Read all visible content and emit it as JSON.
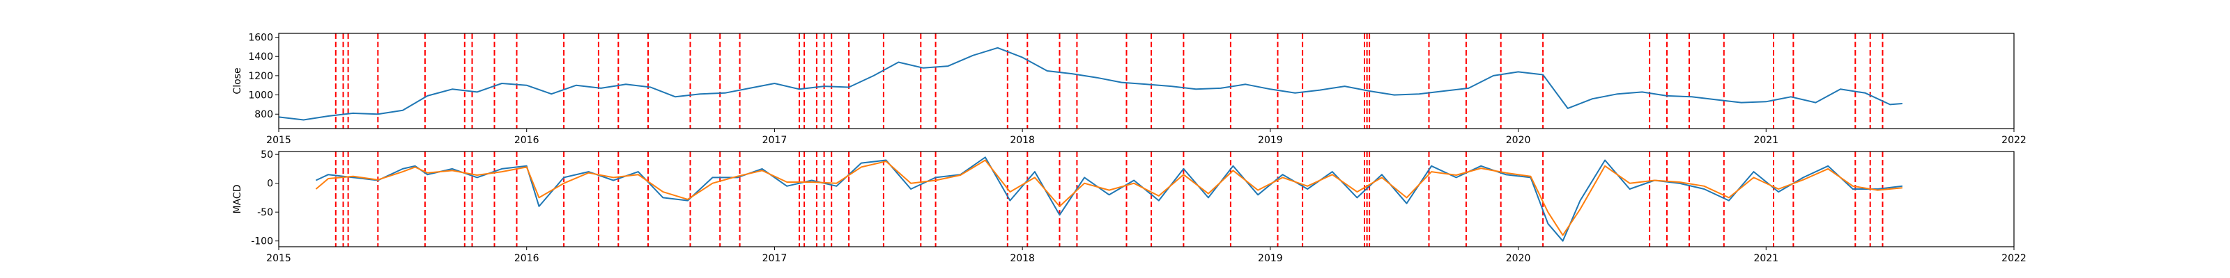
{
  "chart_data": [
    {
      "type": "line",
      "ylabel": "Close",
      "xlim": [
        2015.0,
        2022.0
      ],
      "ylim": [
        650,
        1640
      ],
      "x_ticks": [
        "2015",
        "2016",
        "2017",
        "2018",
        "2019",
        "2020",
        "2021",
        "2022"
      ],
      "y_ticks": [
        800,
        1000,
        1200,
        1400,
        1600
      ],
      "series": [
        {
          "color": "#1f77b4",
          "x": [
            2015.0,
            2015.1,
            2015.2,
            2015.3,
            2015.4,
            2015.5,
            2015.6,
            2015.7,
            2015.8,
            2015.9,
            2016.0,
            2016.1,
            2016.2,
            2016.3,
            2016.4,
            2016.5,
            2016.6,
            2016.7,
            2016.8,
            2016.9,
            2017.0,
            2017.1,
            2017.2,
            2017.3,
            2017.4,
            2017.5,
            2017.6,
            2017.7,
            2017.8,
            2017.9,
            2018.0,
            2018.1,
            2018.2,
            2018.3,
            2018.4,
            2018.5,
            2018.6,
            2018.7,
            2018.8,
            2018.9,
            2019.0,
            2019.1,
            2019.2,
            2019.3,
            2019.4,
            2019.5,
            2019.6,
            2019.7,
            2019.8,
            2019.9,
            2020.0,
            2020.1,
            2020.2,
            2020.3,
            2020.4,
            2020.5,
            2020.6,
            2020.7,
            2020.8,
            2020.9,
            2021.0,
            2021.1,
            2021.2,
            2021.3,
            2021.4,
            2021.5,
            2021.55
          ],
          "y": [
            770,
            740,
            780,
            810,
            800,
            840,
            990,
            1060,
            1030,
            1120,
            1100,
            1010,
            1100,
            1070,
            1110,
            1080,
            980,
            1010,
            1020,
            1070,
            1120,
            1060,
            1090,
            1080,
            1200,
            1340,
            1280,
            1300,
            1410,
            1490,
            1390,
            1250,
            1220,
            1180,
            1130,
            1110,
            1090,
            1060,
            1070,
            1110,
            1060,
            1020,
            1050,
            1090,
            1040,
            1000,
            1010,
            1040,
            1070,
            1200,
            1240,
            1210,
            860,
            960,
            1010,
            1030,
            990,
            980,
            950,
            920,
            930,
            980,
            920,
            1060,
            1020,
            900,
            910
          ]
        }
      ],
      "event_markers_x": [
        2015.23,
        2015.26,
        2015.28,
        2015.4,
        2015.59,
        2015.75,
        2015.78,
        2015.87,
        2015.96,
        2016.15,
        2016.29,
        2016.37,
        2016.49,
        2016.66,
        2016.78,
        2016.86,
        2017.1,
        2017.12,
        2017.17,
        2017.2,
        2017.23,
        2017.3,
        2017.44,
        2017.59,
        2017.65,
        2017.94,
        2018.02,
        2018.15,
        2018.22,
        2018.42,
        2018.52,
        2018.65,
        2018.84,
        2019.03,
        2019.13,
        2019.38,
        2019.39,
        2019.4,
        2019.64,
        2019.79,
        2019.93,
        2020.1,
        2020.53,
        2020.6,
        2020.69,
        2020.83,
        2021.03,
        2021.11,
        2021.36,
        2021.42,
        2021.47
      ],
      "event_marker_color": "#ff0000"
    },
    {
      "type": "line",
      "ylabel": "MACD",
      "xlim": [
        2015.0,
        2022.0
      ],
      "ylim": [
        -110,
        55
      ],
      "x_ticks": [
        "2015",
        "2016",
        "2017",
        "2018",
        "2019",
        "2020",
        "2021",
        "2022"
      ],
      "y_ticks": [
        -100,
        -50,
        0,
        50
      ],
      "series": [
        {
          "color": "#1f77b4",
          "x": [
            2015.15,
            2015.2,
            2015.3,
            2015.4,
            2015.5,
            2015.55,
            2015.6,
            2015.7,
            2015.8,
            2015.9,
            2016.0,
            2016.05,
            2016.15,
            2016.25,
            2016.35,
            2016.45,
            2016.55,
            2016.65,
            2016.75,
            2016.85,
            2016.95,
            2017.05,
            2017.15,
            2017.25,
            2017.35,
            2017.45,
            2017.55,
            2017.65,
            2017.75,
            2017.85,
            2017.95,
            2018.05,
            2018.15,
            2018.25,
            2018.35,
            2018.45,
            2018.55,
            2018.65,
            2018.75,
            2018.85,
            2018.95,
            2019.05,
            2019.15,
            2019.25,
            2019.35,
            2019.45,
            2019.55,
            2019.65,
            2019.75,
            2019.85,
            2019.95,
            2020.05,
            2020.12,
            2020.18,
            2020.25,
            2020.35,
            2020.45,
            2020.55,
            2020.65,
            2020.75,
            2020.85,
            2020.95,
            2021.05,
            2021.15,
            2021.25,
            2021.35,
            2021.45,
            2021.55
          ],
          "y": [
            5,
            15,
            10,
            5,
            25,
            30,
            15,
            25,
            10,
            25,
            30,
            -40,
            10,
            20,
            5,
            20,
            -25,
            -30,
            10,
            10,
            25,
            -5,
            5,
            -5,
            35,
            40,
            -10,
            10,
            15,
            45,
            -30,
            20,
            -55,
            10,
            -20,
            5,
            -30,
            25,
            -25,
            30,
            -20,
            15,
            -10,
            20,
            -25,
            15,
            -35,
            30,
            10,
            30,
            15,
            10,
            -70,
            -100,
            -30,
            40,
            -10,
            5,
            0,
            -10,
            -30,
            20,
            -15,
            10,
            30,
            -10,
            -10,
            -5
          ]
        },
        {
          "color": "#ff7f0e",
          "x": [
            2015.15,
            2015.2,
            2015.3,
            2015.4,
            2015.5,
            2015.55,
            2015.6,
            2015.7,
            2015.8,
            2015.9,
            2016.0,
            2016.05,
            2016.15,
            2016.25,
            2016.35,
            2016.45,
            2016.55,
            2016.65,
            2016.75,
            2016.85,
            2016.95,
            2017.05,
            2017.15,
            2017.25,
            2017.35,
            2017.45,
            2017.55,
            2017.65,
            2017.75,
            2017.85,
            2017.95,
            2018.05,
            2018.15,
            2018.25,
            2018.35,
            2018.45,
            2018.55,
            2018.65,
            2018.75,
            2018.85,
            2018.95,
            2019.05,
            2019.15,
            2019.25,
            2019.35,
            2019.45,
            2019.55,
            2019.65,
            2019.75,
            2019.85,
            2019.95,
            2020.05,
            2020.12,
            2020.18,
            2020.25,
            2020.35,
            2020.45,
            2020.55,
            2020.65,
            2020.75,
            2020.85,
            2020.95,
            2021.05,
            2021.15,
            2021.25,
            2021.35,
            2021.45,
            2021.55
          ],
          "y": [
            -10,
            8,
            12,
            6,
            20,
            28,
            18,
            22,
            14,
            20,
            28,
            -25,
            0,
            18,
            10,
            15,
            -15,
            -28,
            0,
            12,
            22,
            2,
            2,
            0,
            28,
            38,
            0,
            5,
            14,
            40,
            -15,
            10,
            -40,
            0,
            -12,
            0,
            -22,
            15,
            -18,
            22,
            -12,
            10,
            -5,
            15,
            -15,
            10,
            -25,
            20,
            14,
            26,
            18,
            12,
            -50,
            -90,
            -45,
            30,
            0,
            5,
            2,
            -5,
            -25,
            10,
            -10,
            6,
            25,
            -5,
            -12,
            -8
          ]
        }
      ],
      "event_markers_x": [
        2015.23,
        2015.26,
        2015.28,
        2015.4,
        2015.59,
        2015.75,
        2015.78,
        2015.87,
        2015.96,
        2016.15,
        2016.29,
        2016.37,
        2016.49,
        2016.66,
        2016.78,
        2016.86,
        2017.1,
        2017.12,
        2017.17,
        2017.2,
        2017.23,
        2017.3,
        2017.44,
        2017.59,
        2017.65,
        2017.94,
        2018.02,
        2018.15,
        2018.22,
        2018.42,
        2018.52,
        2018.65,
        2018.84,
        2019.03,
        2019.13,
        2019.38,
        2019.39,
        2019.4,
        2019.64,
        2019.79,
        2019.93,
        2020.1,
        2020.53,
        2020.6,
        2020.69,
        2020.83,
        2021.03,
        2021.11,
        2021.36,
        2021.42,
        2021.47
      ],
      "event_marker_color": "#ff0000"
    }
  ]
}
